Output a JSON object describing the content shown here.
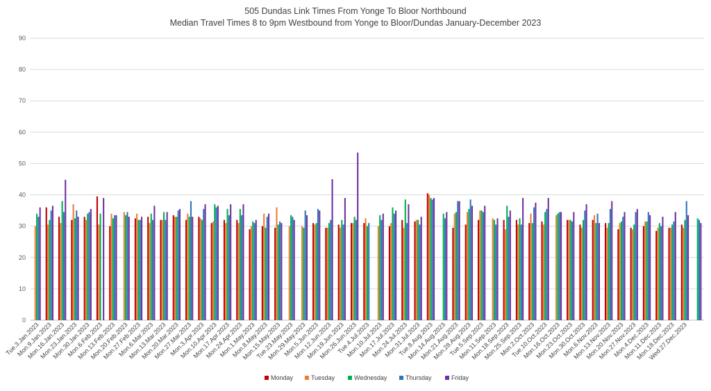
{
  "chart_data": {
    "type": "bar",
    "title": "505 Dundas Link Times From Yonge To Bloor Northbound",
    "subtitle": "Median Travel Times 8 to 9pm Westbound from Yonge to Bloor/Dundas January-December 2023",
    "xlabel": "",
    "ylabel": "",
    "ylim": [
      0,
      90
    ],
    "yticks": [
      0,
      10,
      20,
      30,
      40,
      50,
      60,
      70,
      80,
      90
    ],
    "grid": true,
    "legend_position": "bottom",
    "series_meta": [
      {
        "name": "Monday",
        "color": "#c00000"
      },
      {
        "name": "Tuesday",
        "color": "#ed7d31"
      },
      {
        "name": "Wednesday",
        "color": "#00b050"
      },
      {
        "name": "Thursday",
        "color": "#2e75b6"
      },
      {
        "name": "Friday",
        "color": "#7030a0"
      }
    ],
    "weeks": [
      {
        "label": "Tue.3.Jan.2023",
        "values": [
          null,
          30.0,
          34.0,
          33.0,
          36.0
        ]
      },
      {
        "label": "Mon.9.Jan.2023",
        "values": [
          36.0,
          30.5,
          32.0,
          35.0,
          36.5
        ]
      },
      {
        "label": "Mon.16.Jan.2023",
        "values": [
          33.0,
          31.0,
          38.0,
          34.5,
          44.8
        ]
      },
      {
        "label": "Mon.23.Jan.2023",
        "values": [
          32.0,
          37.0,
          32.5,
          35.0,
          33.0
        ]
      },
      {
        "label": "Mon.30.Jan.2023",
        "values": [
          33.0,
          32.0,
          34.0,
          34.5,
          35.5
        ]
      },
      {
        "label": "Mon.6.Feb.2023",
        "values": [
          39.5,
          30.5,
          34.0,
          null,
          39.0
        ]
      },
      {
        "label": "Mon.13.Feb.2023",
        "values": [
          30.0,
          34.0,
          32.5,
          33.5,
          33.5
        ]
      },
      {
        "label": "Mon.20.Feb.2023",
        "values": [
          null,
          34.5,
          33.5,
          34.5,
          33.0
        ]
      },
      {
        "label": "Mon.27.Feb.2023",
        "values": [
          32.5,
          34.0,
          32.0,
          32.0,
          33.0
        ]
      },
      {
        "label": "Mon.6.Mar.2023",
        "values": [
          33.0,
          31.0,
          34.0,
          32.0,
          36.5
        ]
      },
      {
        "label": "Mon.13.Mar.2023",
        "values": [
          32.0,
          32.0,
          34.5,
          32.0,
          34.5
        ]
      },
      {
        "label": "Mon.20.Mar.2023",
        "values": [
          33.5,
          33.0,
          33.0,
          35.0,
          35.5
        ]
      },
      {
        "label": "Mon.27.Mar.2023",
        "values": [
          32.0,
          34.0,
          33.0,
          38.0,
          33.0
        ]
      },
      {
        "label": "Mon.3.Apr.2023",
        "values": [
          33.0,
          32.5,
          32.0,
          35.5,
          37.0
        ]
      },
      {
        "label": "Mon.10.Apr.2023",
        "values": [
          31.0,
          31.5,
          37.0,
          36.0,
          36.5
        ]
      },
      {
        "label": "Mon.17.Apr.2023",
        "values": [
          32.0,
          31.0,
          35.5,
          33.5,
          37.0
        ]
      },
      {
        "label": "Mon.24.Apr.2023",
        "values": [
          32.0,
          31.0,
          35.5,
          33.5,
          37.0
        ]
      },
      {
        "label": "Mon.1.May.2023",
        "values": [
          29.0,
          30.0,
          31.5,
          31.0,
          32.0
        ]
      },
      {
        "label": "Mon.8.May.2023",
        "values": [
          30.0,
          34.0,
          29.5,
          33.0,
          34.0
        ]
      },
      {
        "label": "Mon.15.May.2023",
        "values": [
          29.5,
          36.0,
          30.5,
          31.5,
          31.0
        ]
      },
      {
        "label": "Tue.23.May.2023",
        "values": [
          null,
          30.0,
          33.5,
          33.0,
          32.0
        ]
      },
      {
        "label": "Mon.29.May.2023",
        "values": [
          null,
          30.0,
          29.5,
          35.0,
          33.5
        ]
      },
      {
        "label": "Mon.5.Jun.2023",
        "values": [
          31.0,
          30.5,
          31.0,
          35.5,
          35.0
        ]
      },
      {
        "label": "Mon.12.Jun.2023",
        "values": [
          29.5,
          29.5,
          31.0,
          32.0,
          45.0
        ]
      },
      {
        "label": "Mon.19.Jun.2023",
        "values": [
          30.5,
          29.5,
          32.0,
          30.5,
          39.0
        ]
      },
      {
        "label": "Mon.26.Jun.2023",
        "values": [
          31.0,
          31.0,
          33.0,
          32.0,
          53.5
        ]
      },
      {
        "label": "Tue.4.Jul.2023",
        "values": [
          31.0,
          32.5,
          30.0,
          31.0,
          null
        ]
      },
      {
        "label": "Mon.10.Jul.2023",
        "values": [
          null,
          30.0,
          33.5,
          32.0,
          34.0
        ]
      },
      {
        "label": "Mon.17.Jul.2023",
        "values": [
          30.0,
          31.0,
          36.0,
          34.0,
          35.0
        ]
      },
      {
        "label": "Mon.24.Jul.2023",
        "values": [
          32.0,
          29.5,
          38.5,
          31.0,
          37.0
        ]
      },
      {
        "label": "Mon.31.Jul.2023",
        "values": [
          31.5,
          32.0,
          32.0,
          30.5,
          33.0
        ]
      },
      {
        "label": "Tue.8.Aug.2023",
        "values": [
          40.5,
          40.0,
          39.0,
          38.5,
          39.0
        ]
      },
      {
        "label": "Mon.14.Aug.2023",
        "values": [
          null,
          null,
          34.0,
          32.5,
          34.5
        ]
      },
      {
        "label": "Mon.21.Aug.2023",
        "values": [
          29.5,
          34.0,
          34.5,
          38.0,
          38.0
        ]
      },
      {
        "label": "Mon.28.Aug.2023",
        "values": [
          30.5,
          34.5,
          35.5,
          38.5,
          36.5
        ]
      },
      {
        "label": "Tue.5.Sep.2023",
        "values": [
          32.0,
          35.0,
          35.0,
          34.5,
          36.5
        ]
      },
      {
        "label": "Mon.11.Sep.2023",
        "values": [
          null,
          32.5,
          32.0,
          30.5,
          32.5
        ]
      },
      {
        "label": "Mon.18.Sep.2023",
        "values": [
          32.0,
          29.0,
          36.5,
          33.0,
          35.0
        ]
      },
      {
        "label": "Mon.25.Sep.2023",
        "values": [
          32.0,
          30.5,
          32.5,
          30.5,
          39.0
        ]
      },
      {
        "label": "Mon.2.Oct.2023",
        "values": [
          31.0,
          34.0,
          31.0,
          36.0,
          37.5
        ]
      },
      {
        "label": "Tue.10.Oct.2023",
        "values": [
          31.5,
          30.5,
          34.5,
          35.5,
          39.0
        ]
      },
      {
        "label": "Mon.16.Oct.2023",
        "values": [
          null,
          33.5,
          34.0,
          34.5,
          34.5
        ]
      },
      {
        "label": "Mon.23.Oct.2023",
        "values": [
          32.0,
          32.0,
          32.0,
          31.5,
          34.5
        ]
      },
      {
        "label": "Mon.30.Oct.2023",
        "values": [
          30.5,
          29.5,
          32.0,
          35.0,
          37.0
        ]
      },
      {
        "label": "Mon.6.Nov.2023",
        "values": [
          32.0,
          33.5,
          31.0,
          34.0,
          31.0
        ]
      },
      {
        "label": "Mon.13.Nov.2023",
        "values": [
          31.0,
          29.5,
          31.0,
          35.5,
          38.0
        ]
      },
      {
        "label": "Mon.20.Nov.2023",
        "values": [
          29.0,
          31.0,
          31.5,
          33.0,
          34.5
        ]
      },
      {
        "label": "Mon.27.Nov.2023",
        "values": [
          29.5,
          29.0,
          30.5,
          34.5,
          35.5
        ]
      },
      {
        "label": "Mon.4.Dec.2023",
        "values": [
          30.0,
          31.5,
          31.5,
          34.5,
          33.5
        ]
      },
      {
        "label": "Mon.11.Dec.2023",
        "values": [
          28.5,
          29.5,
          31.0,
          30.0,
          33.0
        ]
      },
      {
        "label": "Mon.18.Dec.2023",
        "values": [
          29.5,
          29.5,
          30.5,
          31.5,
          34.5
        ]
      },
      {
        "label": "Wed.27.Dec.2023",
        "values": [
          30.5,
          29.5,
          32.0,
          38.0,
          33.5
        ]
      }
    ],
    "extra_week": {
      "label": "",
      "values": [
        null,
        null,
        32.5,
        32.0,
        31.0
      ]
    }
  }
}
